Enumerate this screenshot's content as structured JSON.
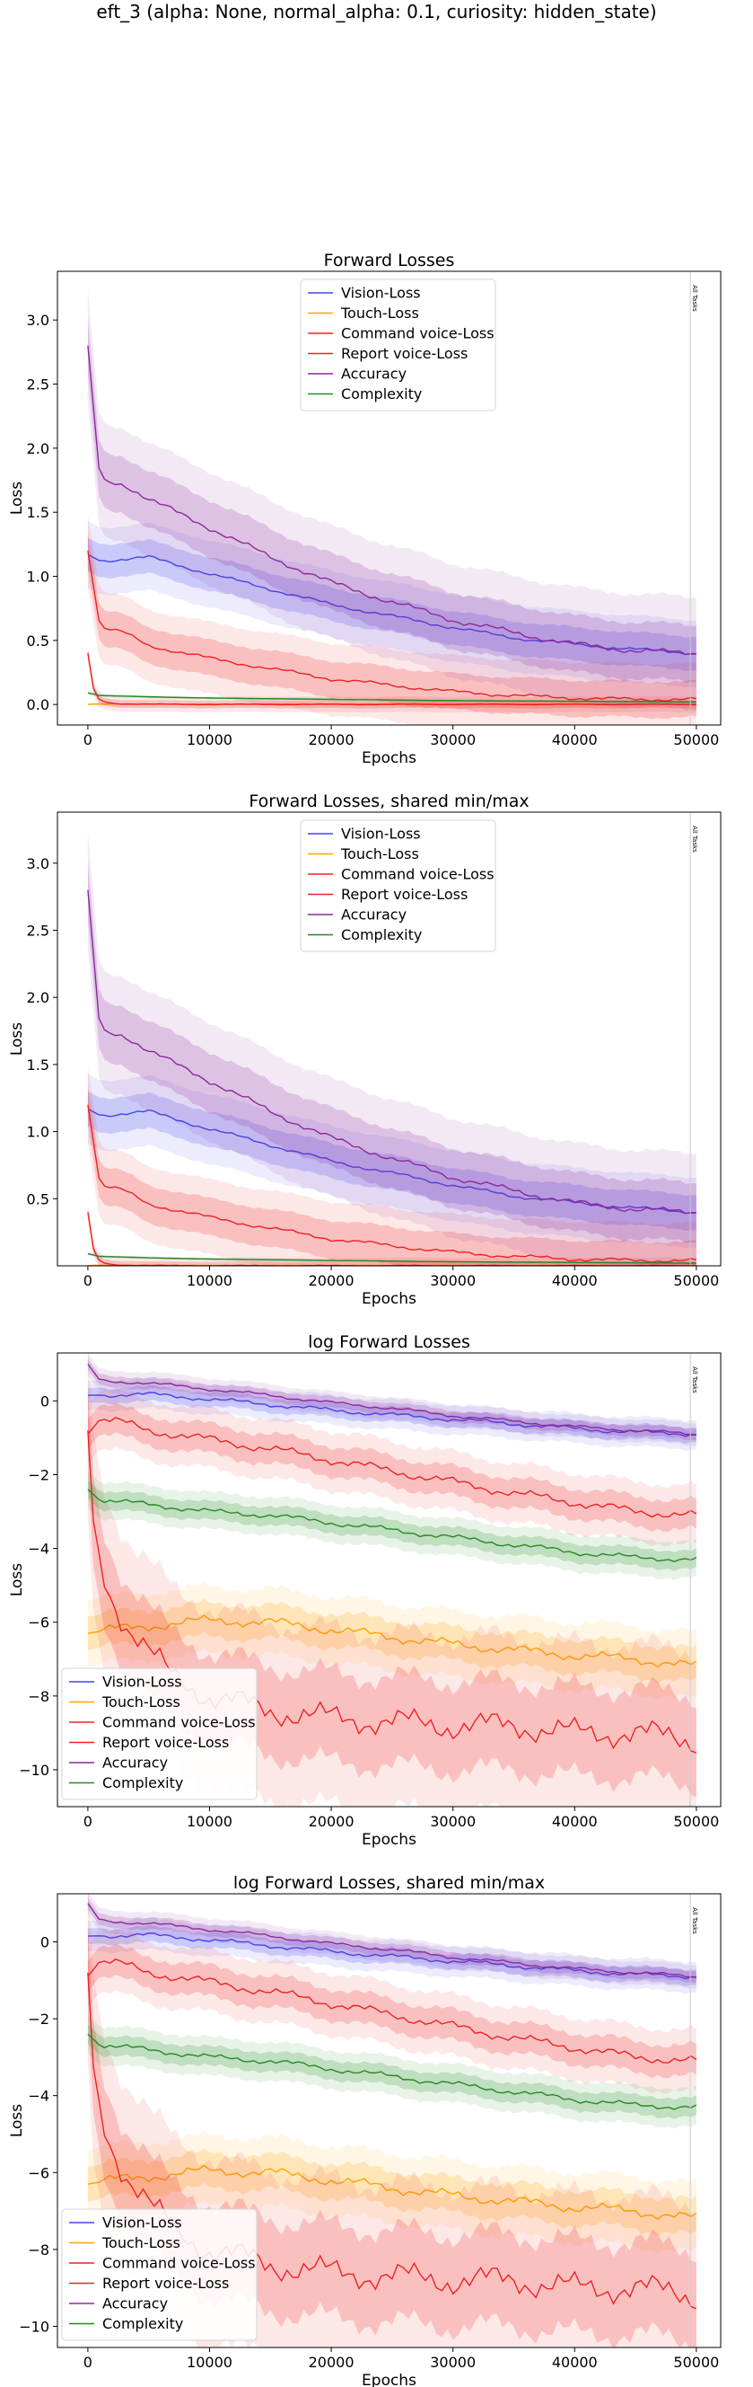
{
  "figure": {
    "suptitle": "eft_3 (alpha: None, normal_alpha: 0.1, curiosity: hidden_state)"
  },
  "chart_data": [
    {
      "type": "line",
      "title": "Forward Losses",
      "xlabel": "Epochs",
      "ylabel": "Loss",
      "xlim": [
        -2500,
        52000
      ],
      "ylim": [
        -0.16,
        3.38
      ],
      "log": false,
      "xticks": [
        0,
        10000,
        20000,
        30000,
        40000,
        50000
      ],
      "yticks": [
        0.0,
        0.5,
        1.0,
        1.5,
        2.0,
        2.5,
        3.0
      ],
      "ytick_labels": [
        "0.0",
        "0.5",
        "1.0",
        "1.5",
        "2.0",
        "2.5",
        "3.0"
      ],
      "vline": {
        "x": 49500,
        "label": "All Tasks"
      },
      "legend_position": "upper center",
      "grid": false,
      "series": [
        {
          "name": "Vision-Loss",
          "color": "#4444ee",
          "x": [
            0,
            1000,
            5000,
            10000,
            15000,
            20000,
            25000,
            30000,
            35000,
            40000,
            45000,
            50000
          ],
          "y": [
            1.17,
            1.12,
            1.15,
            1.02,
            0.9,
            0.78,
            0.69,
            0.6,
            0.52,
            0.47,
            0.43,
            0.4
          ],
          "band": 0.13
        },
        {
          "name": "Touch-Loss",
          "color": "#ffa500",
          "x": [
            0,
            500,
            2000,
            5000,
            10000,
            20000,
            30000,
            40000,
            50000
          ],
          "y": [
            0.0,
            0.004,
            0.003,
            0.003,
            0.002,
            0.002,
            0.002,
            0.002,
            0.002
          ],
          "band": 0.004
        },
        {
          "name": "Command voice-Loss",
          "color": "#ee2222",
          "x": [
            0,
            500,
            1000,
            2000,
            3000,
            5000,
            10000,
            20000,
            30000,
            40000,
            50000
          ],
          "y": [
            0.4,
            0.1,
            0.03,
            0.01,
            0.005,
            0.002,
            0.001,
            0.001,
            0.001,
            0.001,
            0.001
          ],
          "band": 0.03
        },
        {
          "name": "Report voice-Loss",
          "color": "#ee2222",
          "x": [
            0,
            1000,
            3000,
            5000,
            10000,
            15000,
            20000,
            25000,
            30000,
            35000,
            40000,
            45000,
            50000
          ],
          "y": [
            1.2,
            0.6,
            0.56,
            0.46,
            0.36,
            0.28,
            0.2,
            0.15,
            0.1,
            0.07,
            0.05,
            0.04,
            0.04
          ],
          "band": 0.14
        },
        {
          "name": "Accuracy",
          "color": "#8b2a9b",
          "x": [
            0,
            1000,
            3000,
            5000,
            10000,
            15000,
            20000,
            25000,
            30000,
            35000,
            40000,
            45000,
            50000
          ],
          "y": [
            2.8,
            1.75,
            1.72,
            1.6,
            1.38,
            1.15,
            0.95,
            0.8,
            0.66,
            0.56,
            0.47,
            0.42,
            0.4
          ],
          "band": 0.22
        },
        {
          "name": "Complexity",
          "color": "#228b22",
          "x": [
            0,
            1000,
            5000,
            10000,
            20000,
            30000,
            40000,
            50000
          ],
          "y": [
            0.09,
            0.07,
            0.06,
            0.05,
            0.04,
            0.03,
            0.025,
            0.02
          ],
          "band": 0.005
        }
      ]
    },
    {
      "type": "line",
      "title": "Forward Losses, shared min/max",
      "xlabel": "Epochs",
      "ylabel": "Loss",
      "xlim": [
        -2500,
        52000
      ],
      "ylim": [
        0.0,
        3.38
      ],
      "log": false,
      "xticks": [
        0,
        10000,
        20000,
        30000,
        40000,
        50000
      ],
      "yticks": [
        0.5,
        1.0,
        1.5,
        2.0,
        2.5,
        3.0
      ],
      "ytick_labels": [
        "0.5",
        "1.0",
        "1.5",
        "2.0",
        "2.5",
        "3.0"
      ],
      "vline": {
        "x": 49500,
        "label": "All Tasks"
      },
      "legend_position": "upper center",
      "grid": false,
      "series": [
        {
          "name": "Vision-Loss",
          "color": "#4444ee",
          "x": [
            0,
            1000,
            5000,
            10000,
            15000,
            20000,
            25000,
            30000,
            35000,
            40000,
            45000,
            50000
          ],
          "y": [
            1.17,
            1.12,
            1.15,
            1.02,
            0.9,
            0.78,
            0.69,
            0.6,
            0.52,
            0.47,
            0.43,
            0.4
          ],
          "band": 0.13
        },
        {
          "name": "Touch-Loss",
          "color": "#ffa500",
          "x": [
            0,
            500,
            2000,
            5000,
            10000,
            20000,
            30000,
            40000,
            50000
          ],
          "y": [
            0.0,
            0.004,
            0.003,
            0.003,
            0.002,
            0.002,
            0.002,
            0.002,
            0.002
          ],
          "band": 0.004
        },
        {
          "name": "Command voice-Loss",
          "color": "#ee2222",
          "x": [
            0,
            500,
            1000,
            2000,
            3000,
            5000,
            10000,
            20000,
            30000,
            40000,
            50000
          ],
          "y": [
            0.4,
            0.1,
            0.03,
            0.01,
            0.005,
            0.002,
            0.001,
            0.001,
            0.001,
            0.001,
            0.001
          ],
          "band": 0.03
        },
        {
          "name": "Report voice-Loss",
          "color": "#ee2222",
          "x": [
            0,
            1000,
            3000,
            5000,
            10000,
            15000,
            20000,
            25000,
            30000,
            35000,
            40000,
            45000,
            50000
          ],
          "y": [
            1.2,
            0.6,
            0.56,
            0.46,
            0.36,
            0.28,
            0.2,
            0.15,
            0.1,
            0.07,
            0.05,
            0.04,
            0.04
          ],
          "band": 0.14
        },
        {
          "name": "Accuracy",
          "color": "#8b2a9b",
          "x": [
            0,
            1000,
            3000,
            5000,
            10000,
            15000,
            20000,
            25000,
            30000,
            35000,
            40000,
            45000,
            50000
          ],
          "y": [
            2.8,
            1.75,
            1.72,
            1.6,
            1.38,
            1.15,
            0.95,
            0.8,
            0.66,
            0.56,
            0.47,
            0.42,
            0.4
          ],
          "band": 0.22
        },
        {
          "name": "Complexity",
          "color": "#228b22",
          "x": [
            0,
            1000,
            5000,
            10000,
            20000,
            30000,
            40000,
            50000
          ],
          "y": [
            0.09,
            0.07,
            0.06,
            0.05,
            0.04,
            0.03,
            0.025,
            0.02
          ],
          "band": 0.005
        }
      ]
    },
    {
      "type": "line",
      "title": "log Forward Losses",
      "xlabel": "Epochs",
      "ylabel": "Loss",
      "xlim": [
        -2500,
        52000
      ],
      "ylim": [
        -11.0,
        1.3
      ],
      "log": true,
      "xticks": [
        0,
        10000,
        20000,
        30000,
        40000,
        50000
      ],
      "yticks": [
        -10,
        -8,
        -6,
        -4,
        -2,
        0
      ],
      "ytick_labels": [
        "−10",
        "−8",
        "−6",
        "−4",
        "−2",
        "0"
      ],
      "vline": {
        "x": 49500,
        "label": "All Tasks"
      },
      "legend_position": "lower left",
      "grid": false,
      "series": [
        {
          "name": "Vision-Loss",
          "color": "#4444ee",
          "x": [
            0,
            5000,
            10000,
            15000,
            20000,
            25000,
            30000,
            35000,
            40000,
            45000,
            50000
          ],
          "y": [
            0.15,
            0.18,
            0.05,
            -0.1,
            -0.25,
            -0.38,
            -0.5,
            -0.62,
            -0.75,
            -0.85,
            -0.9
          ],
          "band": 0.2
        },
        {
          "name": "Touch-Loss",
          "color": "#ffa500",
          "x": [
            0,
            2000,
            5000,
            10000,
            15000,
            20000,
            25000,
            30000,
            35000,
            40000,
            45000,
            50000
          ],
          "y": [
            -6.3,
            -6.2,
            -6.1,
            -5.95,
            -6.0,
            -6.2,
            -6.4,
            -6.6,
            -6.75,
            -6.9,
            -7.0,
            -7.2
          ],
          "band": 0.45
        },
        {
          "name": "Command voice-Loss",
          "color": "#ee2222",
          "x": [
            0,
            500,
            1500,
            3000,
            5000,
            7000,
            10000,
            15000,
            20000,
            25000,
            30000,
            35000,
            40000,
            45000,
            50000
          ],
          "y": [
            -0.8,
            -3.5,
            -5.0,
            -6.0,
            -6.8,
            -7.5,
            -8.0,
            -8.4,
            -8.6,
            -8.7,
            -8.8,
            -8.8,
            -9.0,
            -9.0,
            -9.2
          ],
          "band": 1.2
        },
        {
          "name": "Report voice-Loss",
          "color": "#ee2222",
          "x": [
            0,
            1000,
            3000,
            5000,
            10000,
            15000,
            20000,
            25000,
            30000,
            35000,
            40000,
            45000,
            50000
          ],
          "y": [
            -0.9,
            -0.5,
            -0.6,
            -0.8,
            -1.05,
            -1.3,
            -1.6,
            -1.9,
            -2.2,
            -2.5,
            -2.75,
            -3.0,
            -3.1
          ],
          "band": 0.4
        },
        {
          "name": "Accuracy",
          "color": "#8b2a9b",
          "x": [
            0,
            1000,
            5000,
            10000,
            15000,
            20000,
            25000,
            30000,
            35000,
            40000,
            45000,
            50000
          ],
          "y": [
            1.0,
            0.55,
            0.48,
            0.32,
            0.15,
            -0.05,
            -0.2,
            -0.4,
            -0.55,
            -0.7,
            -0.8,
            -0.9
          ],
          "band": 0.15
        },
        {
          "name": "Complexity",
          "color": "#228b22",
          "x": [
            0,
            1000,
            5000,
            10000,
            15000,
            20000,
            25000,
            30000,
            35000,
            40000,
            45000,
            50000
          ],
          "y": [
            -2.4,
            -2.7,
            -2.8,
            -3.0,
            -3.1,
            -3.3,
            -3.5,
            -3.7,
            -3.9,
            -4.1,
            -4.25,
            -4.3
          ],
          "band": 0.25
        }
      ]
    },
    {
      "type": "line",
      "title": "log Forward Losses, shared min/max",
      "xlabel": "Epochs",
      "ylabel": "Loss",
      "xlim": [
        -2500,
        52000
      ],
      "ylim": [
        -10.55,
        1.25
      ],
      "log": true,
      "xticks": [
        0,
        10000,
        20000,
        30000,
        40000,
        50000
      ],
      "yticks": [
        -10,
        -8,
        -6,
        -4,
        -2,
        0
      ],
      "ytick_labels": [
        "−10",
        "−8",
        "−6",
        "−4",
        "−2",
        "0"
      ],
      "vline": {
        "x": 49500,
        "label": "All Tasks"
      },
      "legend_position": "lower left",
      "grid": false,
      "series": [
        {
          "name": "Vision-Loss",
          "color": "#4444ee",
          "x": [
            0,
            5000,
            10000,
            15000,
            20000,
            25000,
            30000,
            35000,
            40000,
            45000,
            50000
          ],
          "y": [
            0.15,
            0.18,
            0.05,
            -0.1,
            -0.25,
            -0.38,
            -0.5,
            -0.62,
            -0.75,
            -0.85,
            -0.9
          ],
          "band": 0.2
        },
        {
          "name": "Touch-Loss",
          "color": "#ffa500",
          "x": [
            0,
            2000,
            5000,
            10000,
            15000,
            20000,
            25000,
            30000,
            35000,
            40000,
            45000,
            50000
          ],
          "y": [
            -6.3,
            -6.2,
            -6.1,
            -5.95,
            -6.0,
            -6.2,
            -6.4,
            -6.6,
            -6.75,
            -6.9,
            -7.0,
            -7.2
          ],
          "band": 0.45
        },
        {
          "name": "Command voice-Loss",
          "color": "#ee2222",
          "x": [
            0,
            500,
            1500,
            3000,
            5000,
            7000,
            10000,
            15000,
            20000,
            25000,
            30000,
            35000,
            40000,
            45000,
            50000
          ],
          "y": [
            -0.8,
            -3.5,
            -5.0,
            -6.0,
            -6.8,
            -7.5,
            -8.0,
            -8.4,
            -8.6,
            -8.7,
            -8.8,
            -8.8,
            -9.0,
            -9.0,
            -9.2
          ],
          "band": 1.2
        },
        {
          "name": "Report voice-Loss",
          "color": "#ee2222",
          "x": [
            0,
            1000,
            3000,
            5000,
            10000,
            15000,
            20000,
            25000,
            30000,
            35000,
            40000,
            45000,
            50000
          ],
          "y": [
            -0.9,
            -0.5,
            -0.6,
            -0.8,
            -1.05,
            -1.3,
            -1.6,
            -1.9,
            -2.2,
            -2.5,
            -2.75,
            -3.0,
            -3.1
          ],
          "band": 0.4
        },
        {
          "name": "Accuracy",
          "color": "#8b2a9b",
          "x": [
            0,
            1000,
            5000,
            10000,
            15000,
            20000,
            25000,
            30000,
            35000,
            40000,
            45000,
            50000
          ],
          "y": [
            1.0,
            0.55,
            0.48,
            0.32,
            0.15,
            -0.05,
            -0.2,
            -0.4,
            -0.55,
            -0.7,
            -0.8,
            -0.9
          ],
          "band": 0.15
        },
        {
          "name": "Complexity",
          "color": "#228b22",
          "x": [
            0,
            1000,
            5000,
            10000,
            15000,
            20000,
            25000,
            30000,
            35000,
            40000,
            45000,
            50000
          ],
          "y": [
            -2.4,
            -2.7,
            -2.8,
            -3.0,
            -3.1,
            -3.3,
            -3.5,
            -3.7,
            -3.9,
            -4.1,
            -4.25,
            -4.3
          ],
          "band": 0.25
        }
      ]
    }
  ]
}
